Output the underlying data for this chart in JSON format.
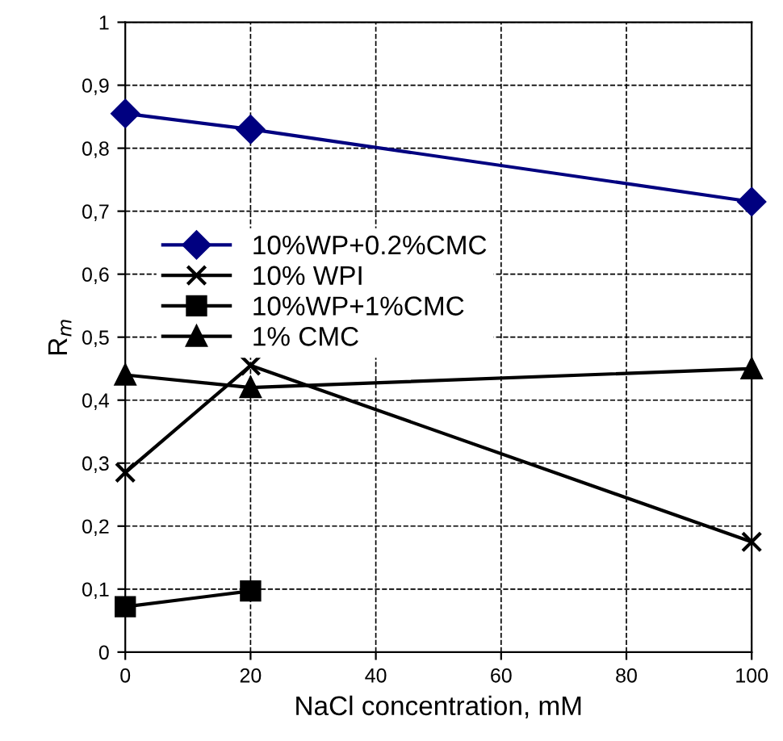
{
  "chart_data": {
    "type": "line",
    "xlabel": "NaCl concentration, mM",
    "ylabel": "R$_{m}$",
    "x": [
      0,
      20,
      100
    ],
    "xlim": [
      0,
      100
    ],
    "xticks": [
      0,
      20,
      40,
      60,
      80,
      100
    ],
    "ylim": [
      0,
      1
    ],
    "yticks": [
      0,
      {
        "value": 0.1,
        "label": "0,1"
      },
      {
        "value": 0.2,
        "label": "0,2"
      },
      {
        "value": 0.3,
        "label": "0,3"
      },
      {
        "value": 0.4,
        "label": "0,4"
      },
      {
        "value": 0.5,
        "label": "0,5"
      },
      {
        "value": 0.6,
        "label": "0,6"
      },
      {
        "value": 0.7,
        "label": "0,7"
      },
      {
        "value": 0.8,
        "label": "0,8"
      },
      {
        "value": 0.9,
        "label": "0,9"
      },
      1
    ],
    "grid": true,
    "legend": "left",
    "line_style": "solid",
    "series": [
      {
        "name": "10%WP+0.2%CMC",
        "color": "#000080",
        "marker": "diamond",
        "values": [
          0.855,
          0.83,
          0.715
        ]
      },
      {
        "name": "10% WPI",
        "color": "#000000",
        "marker": "cross",
        "values": [
          0.285,
          0.455,
          0.175
        ]
      },
      {
        "name": "10%WP+1%CMC",
        "color": "#000000",
        "marker": "square",
        "values": [
          0.072,
          0.097,
          null
        ]
      },
      {
        "name": "1% CMC",
        "color": "#000000",
        "marker": "triangle",
        "values": [
          0.44,
          0.42,
          0.45
        ]
      }
    ]
  }
}
